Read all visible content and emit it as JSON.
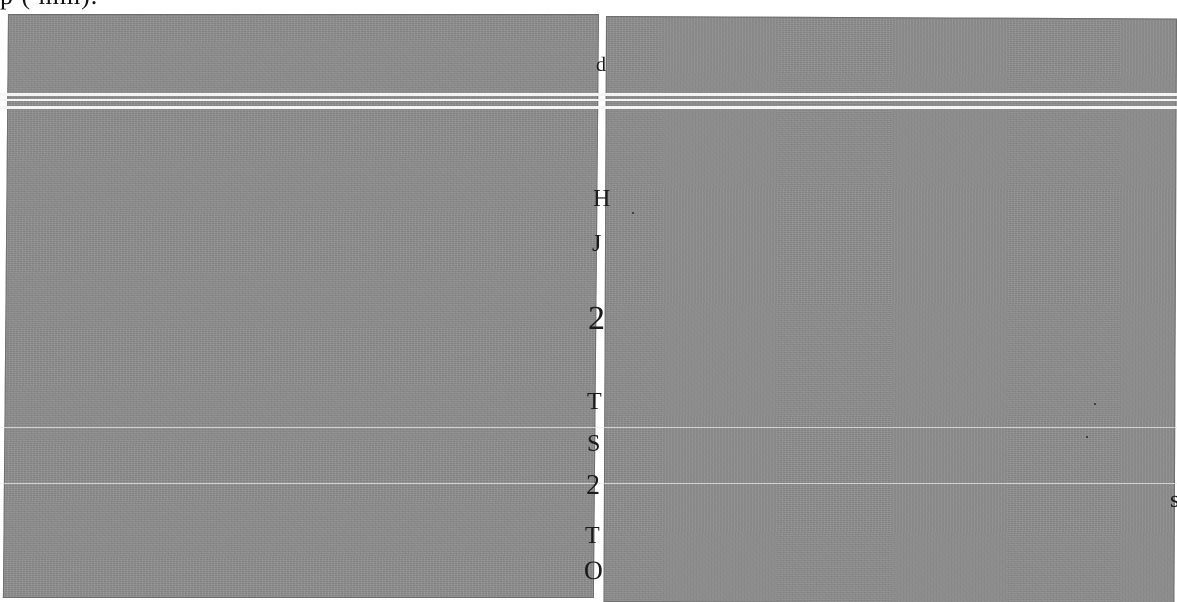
{
  "document": {
    "top_text": "p (   mm).",
    "gutter_characters": [
      "d",
      "H",
      "J",
      "2",
      "T",
      "S",
      "2",
      "T",
      "O"
    ],
    "right_edge_character": "s"
  },
  "colors": {
    "panel": "#8e8e8e",
    "scan_line": "#f4f4f4",
    "text": "#1a1a1a",
    "background": "#ffffff"
  }
}
